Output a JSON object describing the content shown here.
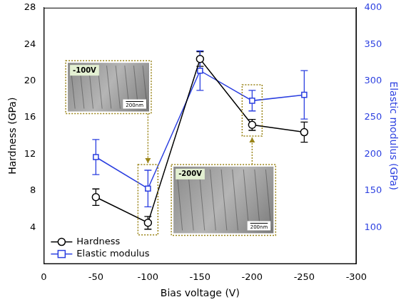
{
  "chart_data": {
    "type": "line",
    "xlabel": "Bias voltage (V)",
    "ylabel": "Hardness (GPa)",
    "y2label": "Elastic modulus (GPa)",
    "x": [
      -50,
      -100,
      -150,
      -200,
      -250
    ],
    "xlim": [
      0,
      -300
    ],
    "xticks": [
      0,
      -50,
      -100,
      -150,
      -200,
      -250,
      -300
    ],
    "ylim": [
      0,
      28
    ],
    "yticks": [
      4,
      8,
      12,
      16,
      20,
      24,
      28
    ],
    "y2lim": [
      50,
      400
    ],
    "y2ticks": [
      100,
      150,
      200,
      250,
      300,
      350,
      400
    ],
    "series": [
      {
        "name": "Hardness",
        "color": "#000000",
        "marker": "circle",
        "values": [
          7.3,
          4.5,
          22.4,
          15.2,
          14.4
        ],
        "errors": [
          0.9,
          0.7,
          0.8,
          0.6,
          1.1
        ]
      },
      {
        "name": "Elastic modulus",
        "color": "#2b3fe0",
        "marker": "square",
        "axis": "y2",
        "values": [
          196,
          153,
          314,
          273,
          281
        ],
        "errors": [
          24,
          25,
          27,
          14,
          33
        ]
      }
    ],
    "legend": "lower left",
    "grid": false,
    "insets": [
      {
        "label": "-100V",
        "scale_bar": "200nm",
        "x": -100
      },
      {
        "label": "-200V",
        "scale_bar": "200nm",
        "x": -200
      }
    ]
  }
}
